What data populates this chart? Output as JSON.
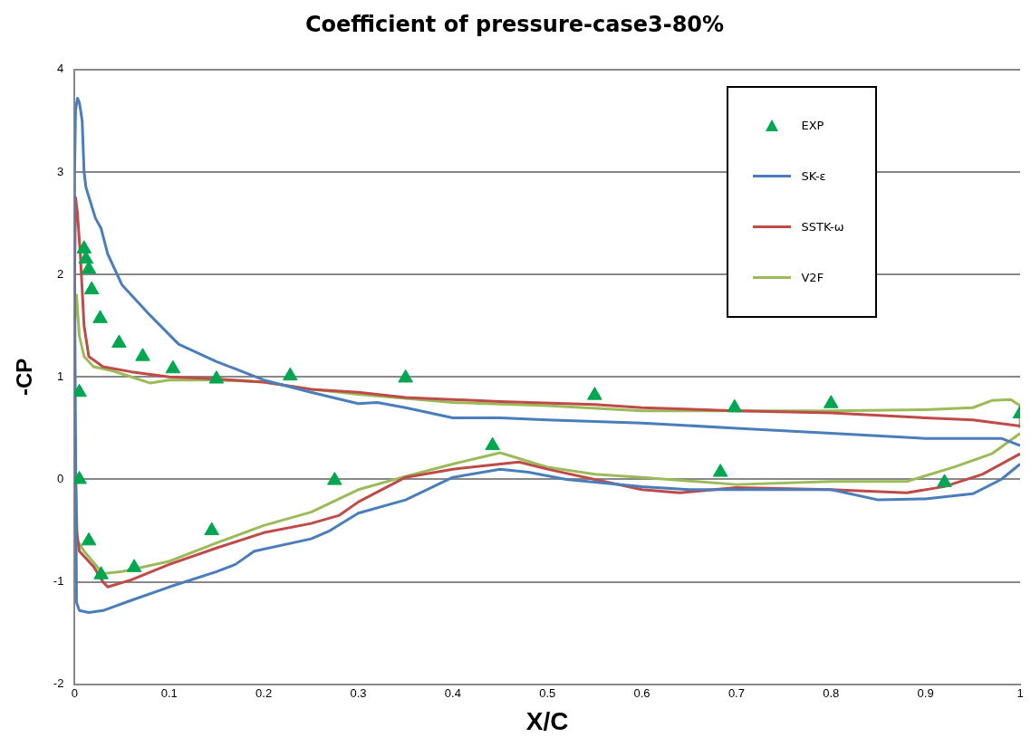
{
  "chart_data": {
    "type": "line",
    "title": "Coefficient of pressure-case3-80%",
    "xlabel": "X/C",
    "ylabel": "-CP",
    "xlim": [
      0,
      1
    ],
    "xticks": [
      0,
      0.1,
      0.2,
      0.3,
      0.4,
      0.5,
      0.6,
      0.7,
      0.8,
      0.9,
      1
    ],
    "ylim": [
      -2,
      4
    ],
    "yticks": [
      -2,
      -1,
      0,
      1,
      2,
      3,
      4
    ],
    "grid": "y",
    "legend": "top right",
    "series": [
      {
        "name": "EXP",
        "type": "scatter",
        "marker": "triangle",
        "color": "#00a650",
        "x": [
          0.005,
          0.01,
          0.012,
          0.015,
          0.018,
          0.027,
          0.047,
          0.072,
          0.104,
          0.15,
          0.228,
          0.35,
          0.55,
          0.698,
          0.8,
          1.0,
          0.005,
          0.015,
          0.028,
          0.063,
          0.145,
          0.275,
          0.442,
          0.683,
          0.92
        ],
        "values": [
          0.85,
          2.25,
          2.15,
          2.05,
          1.85,
          1.57,
          1.33,
          1.2,
          1.08,
          0.98,
          1.01,
          0.99,
          0.82,
          0.7,
          0.74,
          0.64,
          0.0,
          -0.6,
          -0.93,
          -0.86,
          -0.5,
          -0.01,
          0.33,
          0.07,
          -0.03
        ]
      },
      {
        "name": "SK-ε",
        "marker": "none",
        "color": "#4a7ebb",
        "x": [
          1.0,
          0.98,
          0.9,
          0.8,
          0.7,
          0.6,
          0.5,
          0.45,
          0.4,
          0.35,
          0.32,
          0.3,
          0.25,
          0.2,
          0.15,
          0.11,
          0.08,
          0.05,
          0.035,
          0.028,
          0.022,
          0.012,
          0.01,
          0.008,
          0.005,
          0.003,
          0.001,
          0,
          0,
          0.002,
          0.005,
          0.015,
          0.03,
          0.06,
          0.1,
          0.15,
          0.17,
          0.19,
          0.25,
          0.27,
          0.3,
          0.35,
          0.4,
          0.45,
          0.48,
          0.52,
          0.6,
          0.65,
          0.7,
          0.8,
          0.85,
          0.9,
          0.95,
          0.98,
          1.0
        ],
        "values": [
          0.33,
          0.4,
          0.4,
          0.45,
          0.5,
          0.55,
          0.58,
          0.6,
          0.6,
          0.7,
          0.75,
          0.74,
          0.85,
          0.97,
          1.15,
          1.32,
          1.6,
          1.9,
          2.2,
          2.45,
          2.55,
          2.85,
          3.0,
          3.5,
          3.68,
          3.72,
          3.6,
          3.0,
          2.0,
          -1.2,
          -1.28,
          -1.3,
          -1.28,
          -1.18,
          -1.05,
          -0.9,
          -0.83,
          -0.7,
          -0.58,
          -0.5,
          -0.33,
          -0.2,
          0.02,
          0.1,
          0.07,
          0.0,
          -0.07,
          -0.1,
          -0.1,
          -0.1,
          -0.2,
          -0.19,
          -0.14,
          0.0,
          0.15
        ]
      },
      {
        "name": "SSTK-ω",
        "marker": "none",
        "color": "#be4b48",
        "x": [
          1.0,
          0.95,
          0.9,
          0.8,
          0.7,
          0.6,
          0.55,
          0.45,
          0.35,
          0.3,
          0.25,
          0.2,
          0.15,
          0.1,
          0.06,
          0.03,
          0.015,
          0.01,
          0.006,
          0.003,
          0.001,
          0,
          0,
          0.002,
          0.005,
          0.02,
          0.03,
          0.035,
          0.06,
          0.1,
          0.15,
          0.2,
          0.25,
          0.28,
          0.3,
          0.35,
          0.4,
          0.45,
          0.47,
          0.5,
          0.55,
          0.6,
          0.64,
          0.7,
          0.8,
          0.88,
          0.92,
          0.96,
          1.0
        ],
        "values": [
          0.52,
          0.58,
          0.6,
          0.65,
          0.67,
          0.7,
          0.73,
          0.76,
          0.8,
          0.85,
          0.88,
          0.95,
          0.98,
          1.0,
          1.05,
          1.1,
          1.2,
          1.5,
          2.2,
          2.6,
          2.75,
          2.0,
          0.5,
          -0.5,
          -0.7,
          -0.85,
          -1.0,
          -1.05,
          -0.98,
          -0.83,
          -0.67,
          -0.52,
          -0.43,
          -0.35,
          -0.22,
          0.02,
          0.1,
          0.15,
          0.17,
          0.1,
          0.0,
          -0.1,
          -0.13,
          -0.08,
          -0.1,
          -0.13,
          -0.07,
          0.05,
          0.25
        ]
      },
      {
        "name": "V2F",
        "marker": "none",
        "color": "#9bbb59",
        "x": [
          1.0,
          1.0,
          0.99,
          0.97,
          0.95,
          0.9,
          0.8,
          0.7,
          0.6,
          0.5,
          0.4,
          0.3,
          0.25,
          0.2,
          0.15,
          0.1,
          0.08,
          0.06,
          0.04,
          0.02,
          0.01,
          0.005,
          0.002,
          0,
          0,
          0.002,
          0.003,
          0.01,
          0.03,
          0.05,
          0.1,
          0.15,
          0.2,
          0.25,
          0.3,
          0.35,
          0.4,
          0.45,
          0.5,
          0.55,
          0.6,
          0.7,
          0.8,
          0.88,
          0.93,
          0.97,
          1.0
        ],
        "values": [
          0.5,
          0.72,
          0.78,
          0.77,
          0.7,
          0.68,
          0.67,
          0.67,
          0.67,
          0.72,
          0.75,
          0.83,
          0.88,
          0.95,
          0.97,
          0.97,
          0.94,
          1.0,
          1.06,
          1.1,
          1.2,
          1.4,
          1.8,
          1.5,
          0.5,
          -0.3,
          -0.6,
          -0.7,
          -0.92,
          -0.9,
          -0.8,
          -0.62,
          -0.45,
          -0.32,
          -0.1,
          0.03,
          0.15,
          0.26,
          0.12,
          0.05,
          0.02,
          -0.05,
          -0.02,
          -0.02,
          0.12,
          0.25,
          0.45
        ]
      }
    ]
  }
}
